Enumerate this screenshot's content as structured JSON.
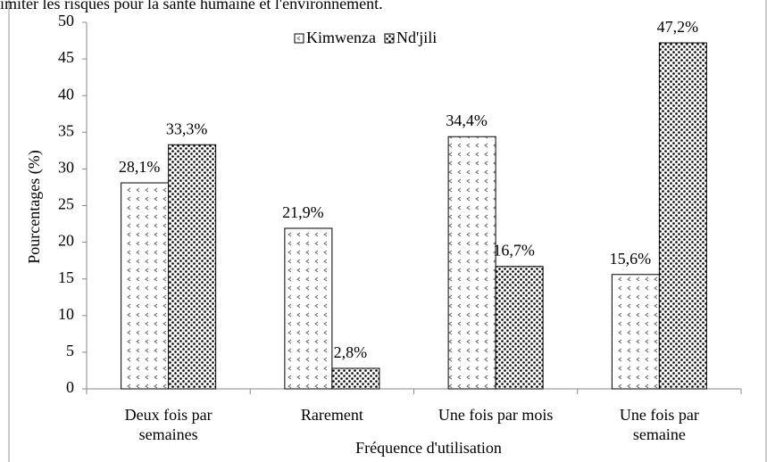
{
  "chart_data": {
    "type": "bar",
    "annotation": "imiter les risques pour la santé humaine et l'environnement.",
    "xlabel": "Fréquence d'utilisation",
    "ylabel": "Pourcentages (%)",
    "categories": [
      "Deux fois par semaines",
      "Rarement",
      "Une fois par mois",
      "Une fois par semaine"
    ],
    "series": [
      {
        "name": "Kimwenza",
        "color": "#555555",
        "pattern": "chevrons",
        "values": [
          28.1,
          21.9,
          34.4,
          15.6
        ],
        "value_labels": [
          "28,1%",
          "21,9%",
          "34,4%",
          "15,6%"
        ]
      },
      {
        "name": "Nd'jili",
        "color": "#000000",
        "pattern": "dots",
        "values": [
          33.3,
          2.8,
          16.7,
          47.2
        ],
        "value_labels": [
          "33,3%",
          "2,8%",
          "16,7%",
          "47,2%"
        ]
      }
    ],
    "ylim": [
      0,
      50
    ],
    "yticks": [
      0,
      5,
      10,
      15,
      20,
      25,
      30,
      35,
      40,
      45,
      50
    ],
    "grid": false,
    "legend": "top"
  }
}
